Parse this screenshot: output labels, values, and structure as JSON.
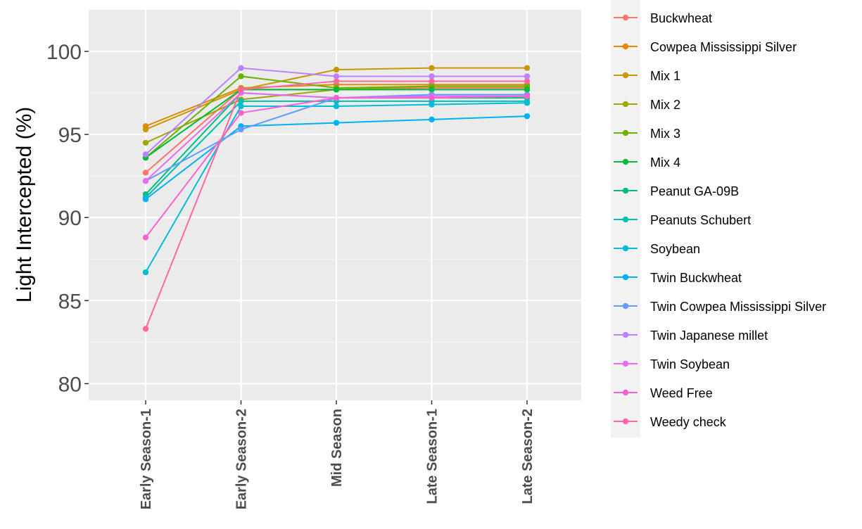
{
  "chart_data": {
    "type": "line",
    "title": "",
    "xlabel": "",
    "ylabel": "Light Intercepted (%)",
    "ylim": [
      79,
      102.5
    ],
    "yticks": [
      80,
      85,
      90,
      95,
      100
    ],
    "categories": [
      "Early Season-1",
      "Early Season-2",
      "Mid Season",
      "Late Season-1",
      "Late Season-2"
    ],
    "grid": true,
    "legend_position": "right",
    "series": [
      {
        "name": "Buckwheat",
        "color": "#F8766D",
        "values": [
          92.7,
          97.7,
          97.7,
          97.8,
          97.8
        ]
      },
      {
        "name": "Cowpea Mississippi Silver",
        "color": "#E58700",
        "values": [
          95.5,
          97.8,
          98.0,
          98.0,
          98.0
        ]
      },
      {
        "name": "Mix 1",
        "color": "#C99800",
        "values": [
          95.3,
          97.7,
          98.9,
          99.0,
          99.0
        ]
      },
      {
        "name": "Mix 2",
        "color": "#A3A500",
        "values": [
          94.5,
          97.1,
          97.7,
          97.9,
          97.9
        ]
      },
      {
        "name": "Mix 3",
        "color": "#6BB100",
        "values": [
          93.6,
          98.5,
          97.8,
          97.9,
          97.9
        ]
      },
      {
        "name": "Mix 4",
        "color": "#00BA38",
        "values": [
          93.6,
          97.7,
          97.7,
          97.7,
          97.7
        ]
      },
      {
        "name": "Peanut GA-09B",
        "color": "#00BF7D",
        "values": [
          91.4,
          97.5,
          97.2,
          97.2,
          97.2
        ]
      },
      {
        "name": "Peanuts Schubert",
        "color": "#00C0AF",
        "values": [
          91.2,
          97.0,
          97.0,
          97.0,
          97.0
        ]
      },
      {
        "name": "Soybean",
        "color": "#00BCD8",
        "values": [
          86.7,
          96.7,
          96.7,
          96.8,
          96.9
        ]
      },
      {
        "name": "Twin Buckwheat",
        "color": "#00B0F6",
        "values": [
          91.1,
          95.5,
          95.7,
          95.9,
          96.1
        ]
      },
      {
        "name": "Twin Cowpea Mississippi Silver",
        "color": "#619CFF",
        "values": [
          92.2,
          95.3,
          97.2,
          97.4,
          97.4
        ]
      },
      {
        "name": "Twin Japanese millet",
        "color": "#B983FF",
        "values": [
          93.8,
          99.0,
          98.5,
          98.5,
          98.5
        ]
      },
      {
        "name": "Twin Soybean",
        "color": "#E76BF3",
        "values": [
          92.2,
          97.5,
          97.2,
          97.3,
          97.3
        ]
      },
      {
        "name": "Weed Free",
        "color": "#FD61D1",
        "values": [
          88.8,
          96.3,
          97.2,
          97.2,
          97.3
        ]
      },
      {
        "name": "Weedy check",
        "color": "#FF67A4",
        "values": [
          83.3,
          97.7,
          98.2,
          98.2,
          98.2
        ]
      }
    ]
  }
}
